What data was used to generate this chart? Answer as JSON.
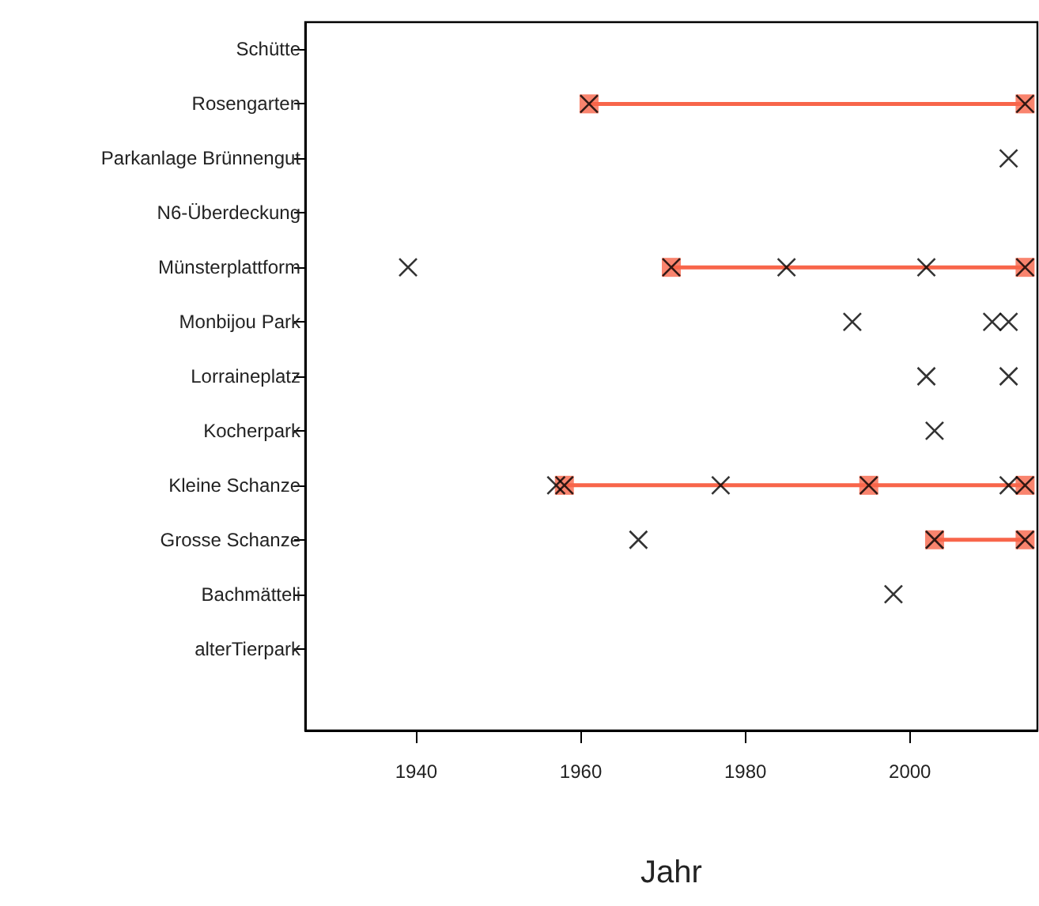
{
  "chart_data": {
    "type": "scatter",
    "xlabel": "Jahr",
    "orientation": "horizontal",
    "xlim": [
      1926.5,
      2015.5
    ],
    "xticks": [
      1940,
      1960,
      1980,
      2000
    ],
    "categories": [
      "Schütte",
      "Rosengarten",
      "Parkanlage Brünnengut",
      "N6-Überdeckung",
      "Münsterplattform",
      "Monbijou Park",
      "Lorraineplatz",
      "Kocherpark",
      "Kleine Schanze",
      "Grosse Schanze",
      "Bachmätteli",
      "alterTierpark",
      null
    ],
    "grid": false,
    "series": [
      {
        "type": "bar",
        "color": "#f8654a",
        "base": [
          null,
          1961,
          null,
          null,
          1971,
          null,
          null,
          null,
          1958,
          2003,
          null,
          null,
          null
        ],
        "values": [
          null,
          53,
          null,
          null,
          43,
          null,
          null,
          null,
          56,
          11,
          null,
          null,
          null
        ]
      },
      {
        "type": "scatter",
        "color": "#f8654a",
        "marker": "square",
        "values": [
          null,
          1961,
          null,
          null,
          1971,
          null,
          null,
          null,
          1958,
          2003,
          null,
          null,
          null
        ]
      },
      {
        "type": "scatter",
        "color": "#f8654a",
        "marker": "square",
        "values": [
          null,
          2014,
          null,
          null,
          2014,
          null,
          null,
          null,
          1995,
          2014,
          null,
          null,
          null
        ]
      },
      {
        "type": "scatter",
        "color": "#f8654a",
        "marker": "square",
        "values": [
          null,
          null,
          null,
          null,
          null,
          null,
          null,
          null,
          2014,
          null,
          null,
          null,
          null
        ]
      },
      {
        "color": "#000000",
        "marker": "cross",
        "values": [
          null,
          1961,
          2012,
          null,
          1939,
          1993,
          2002,
          2003,
          1957,
          1967,
          1998,
          null,
          null
        ]
      },
      {
        "color": "#000000",
        "marker": "cross",
        "values": [
          null,
          2014,
          null,
          null,
          1971,
          2010,
          2012,
          null,
          1958,
          2003,
          null,
          null,
          null
        ]
      },
      {
        "color": "#000000",
        "marker": "cross",
        "values": [
          null,
          null,
          null,
          null,
          1985,
          2012,
          null,
          null,
          1977,
          2014,
          null,
          null,
          null
        ]
      },
      {
        "color": "#000000",
        "marker": "cross",
        "values": [
          null,
          null,
          null,
          null,
          2002,
          null,
          null,
          null,
          1995,
          null,
          null,
          null,
          null
        ]
      },
      {
        "color": "#000000",
        "marker": "cross",
        "values": [
          null,
          null,
          null,
          null,
          2014,
          null,
          null,
          null,
          2012,
          null,
          null,
          null,
          null
        ]
      },
      {
        "color": "#000000",
        "marker": "cross",
        "values": [
          null,
          null,
          null,
          null,
          null,
          null,
          null,
          null,
          2014,
          null,
          null,
          null,
          null
        ]
      }
    ]
  }
}
